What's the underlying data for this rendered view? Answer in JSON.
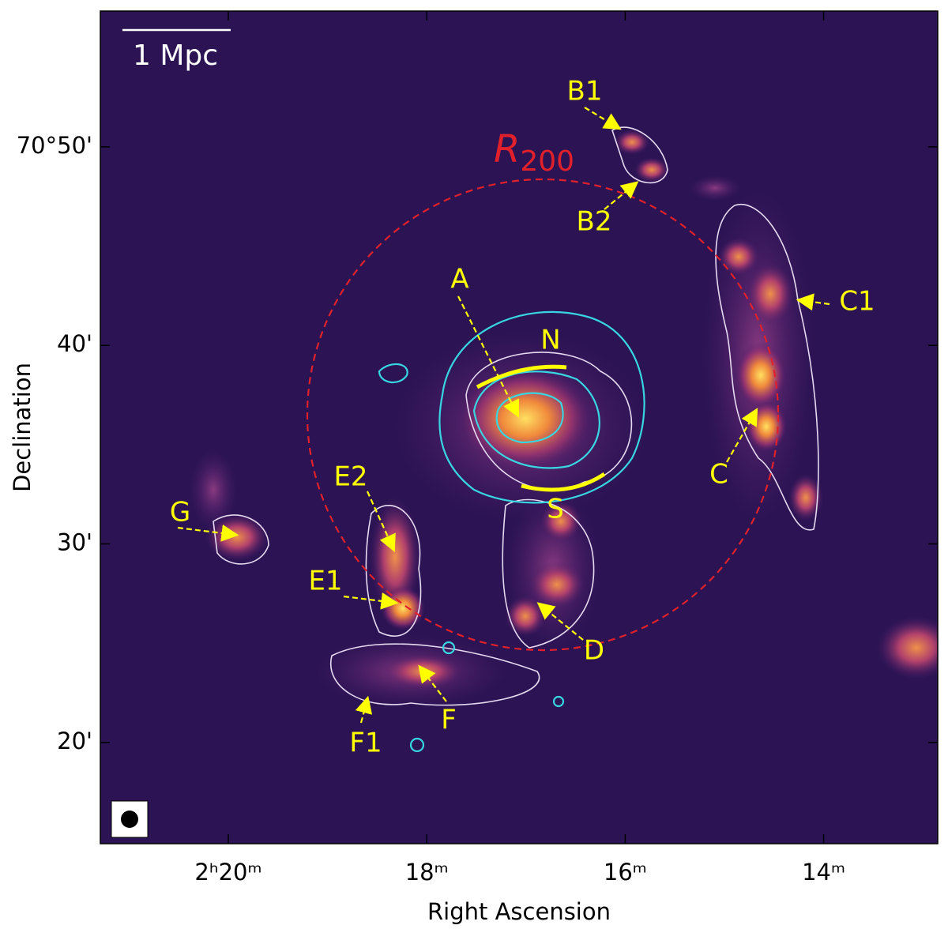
{
  "chart_data": {
    "type": "image",
    "xlabel": "Right Ascension",
    "ylabel": "Declination",
    "xlim": [
      21.29,
      12.85
    ],
    "ylim": [
      14.9,
      56.84
    ],
    "xticks": [
      {
        "value": 20,
        "label": "2ʰ20ᵐ"
      },
      {
        "value": 18,
        "label": "18ᵐ"
      },
      {
        "value": 16,
        "label": "16ᵐ"
      },
      {
        "value": 14,
        "label": "14ᵐ"
      }
    ],
    "yticks": [
      {
        "value": 50,
        "label": "70°50'"
      },
      {
        "value": 40,
        "label": "40'"
      },
      {
        "value": 30,
        "label": "30'"
      },
      {
        "value": 20,
        "label": "20'"
      }
    ],
    "scale_bar": "1 Mpc",
    "circle_label": {
      "main": "R",
      "sub": "200"
    },
    "annotations": {
      "A": "A",
      "B1": "B1",
      "B2": "B2",
      "C": "C",
      "C1": "C1",
      "D": "D",
      "E1": "E1",
      "E2": "E2",
      "F": "F",
      "F1": "F1",
      "G": "G",
      "N": "N",
      "S": "S"
    }
  }
}
